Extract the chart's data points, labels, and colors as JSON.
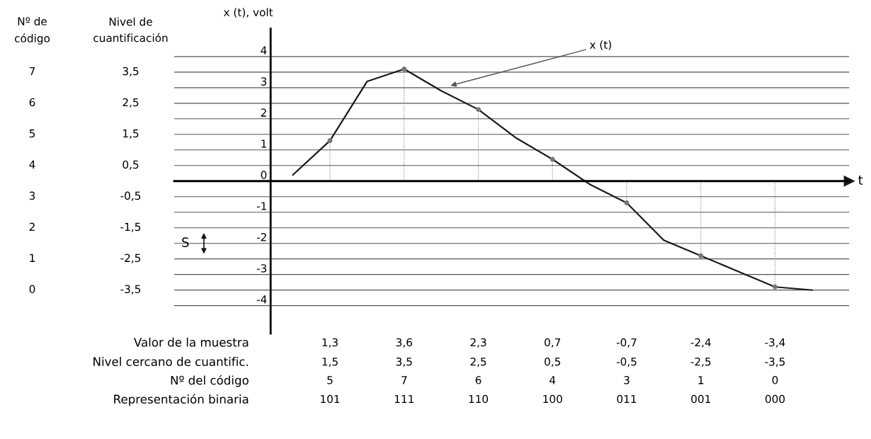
{
  "chart_data": {
    "type": "line",
    "ylabel": "x (t), volt",
    "xlabel": "t",
    "categories": [
      null,
      "1,3\n1,5\n5\n101",
      null,
      "3,6\n3,5\n7\n111",
      null,
      "2,3\n2,5\n6\n110",
      null,
      "0,7\n0,5\n4\n100",
      null,
      "-0,7\n-0,5\n3\n011",
      null,
      "-2,4\n-2,5\n1\n001",
      null,
      "-3,4\n-3,5\n0\n000",
      null
    ],
    "series": [
      {
        "name": "x (t)",
        "color": "#1a1a1a",
        "values": [
          0.2,
          1.3,
          3.2,
          3.6,
          2.9,
          2.3,
          1.4,
          0.7,
          -0.1,
          -0.7,
          -1.9,
          -2.4,
          -2.9,
          -3.4,
          -3.5
        ]
      },
      {
        "type": "lollipop",
        "color": "#777777",
        "marker": "circle",
        "values": [
          null,
          1.3,
          null,
          3.6,
          null,
          2.3,
          null,
          0.7,
          null,
          -0.7,
          null,
          -2.4,
          null,
          -3.4,
          null
        ]
      }
    ],
    "ylim": [
      -4.9,
      4.9
    ],
    "yticks": [
      -4,
      -3,
      -2,
      -1,
      0,
      1,
      2,
      3,
      4
    ],
    "grid": "y",
    "ref_lines": [
      {
        "axis": "y",
        "value": 3.5
      },
      {
        "axis": "y",
        "value": 2.5
      },
      {
        "axis": "y",
        "value": 1.5
      },
      {
        "axis": "y",
        "value": 0.5
      },
      {
        "axis": "y",
        "value": -0.5
      },
      {
        "axis": "y",
        "value": -1.5
      },
      {
        "axis": "y",
        "value": -2.5
      },
      {
        "axis": "y",
        "value": -3.5
      }
    ],
    "annotations": [
      "Valor de la muestra",
      "Nivel cercano de cuantific.",
      "Nº del código",
      "Representación binaria",
      "Nº de\ncódigo",
      "Nivel de\ncuantificación",
      "S",
      "7",
      "6",
      "5",
      "4",
      "3",
      "2",
      "1",
      "0",
      "3,5",
      "2,5",
      "1,5",
      "0,5",
      "-0,5",
      "-1,5",
      "-2,5",
      "-3,5"
    ]
  }
}
